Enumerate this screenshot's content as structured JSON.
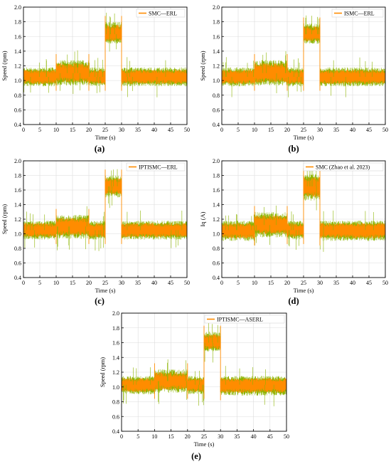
{
  "chart_data": [
    {
      "type": "line",
      "panel_label": "(a)",
      "legend": "SMC—ERL",
      "xlabel": "Time (s)",
      "ylabel": "Speed (rpm)",
      "xlim": [
        0,
        50
      ],
      "ylim": [
        0.4,
        2.0
      ],
      "xticks": [
        "0",
        "5",
        "10",
        "15",
        "20",
        "25",
        "30",
        "35",
        "40",
        "45",
        "50"
      ],
      "yticks": [
        "0.4",
        "0.6",
        "0.8",
        "1.0",
        "1.2",
        "1.4",
        "1.6",
        "1.8",
        "2.0"
      ],
      "grid": true,
      "legend_position": "top-right",
      "series_colors": [
        "#ff8c00",
        "#8cb400"
      ],
      "segments": [
        {
          "x": [
            0,
            10
          ],
          "center": 1.05,
          "low": 0.92,
          "high": 1.18
        },
        {
          "x": [
            10,
            20
          ],
          "center": 1.1,
          "low": 0.93,
          "high": 1.28
        },
        {
          "x": [
            20,
            25
          ],
          "center": 1.05,
          "low": 0.92,
          "high": 1.18
        },
        {
          "x": [
            25,
            30
          ],
          "center": 1.63,
          "low": 1.5,
          "high": 1.8
        },
        {
          "x": [
            30,
            50
          ],
          "center": 1.05,
          "low": 0.92,
          "high": 1.18
        }
      ]
    },
    {
      "type": "line",
      "panel_label": "(b)",
      "legend": "ISMC—ERL",
      "xlabel": "Time (s)",
      "ylabel": "Speed (rpm)",
      "xlim": [
        0,
        50
      ],
      "ylim": [
        0.4,
        2.0
      ],
      "xticks": [
        "0",
        "5",
        "10",
        "15",
        "20",
        "25",
        "30",
        "35",
        "40",
        "45",
        "50"
      ],
      "yticks": [
        "0.4",
        "0.6",
        "0.8",
        "1.0",
        "1.2",
        "1.4",
        "1.6",
        "1.8",
        "2.0"
      ],
      "grid": true,
      "legend_position": "top-right",
      "series_colors": [
        "#ff8c00",
        "#8cb400"
      ],
      "segments": [
        {
          "x": [
            0,
            10
          ],
          "center": 1.05,
          "low": 0.92,
          "high": 1.18
        },
        {
          "x": [
            10,
            20
          ],
          "center": 1.1,
          "low": 0.93,
          "high": 1.28
        },
        {
          "x": [
            20,
            25
          ],
          "center": 1.05,
          "low": 0.92,
          "high": 1.18
        },
        {
          "x": [
            25,
            30
          ],
          "center": 1.63,
          "low": 1.5,
          "high": 1.78
        },
        {
          "x": [
            30,
            50
          ],
          "center": 1.05,
          "low": 0.92,
          "high": 1.18
        }
      ]
    },
    {
      "type": "line",
      "panel_label": "(c)",
      "legend": "IPTISMC—ERL",
      "xlabel": "Time (s)",
      "ylabel": "Speed (rpm)",
      "xlim": [
        0,
        50
      ],
      "ylim": [
        0.4,
        2.0
      ],
      "xticks": [
        "0",
        "5",
        "10",
        "15",
        "20",
        "25",
        "30",
        "35",
        "40",
        "45",
        "50"
      ],
      "yticks": [
        "0.4",
        "0.6",
        "0.8",
        "1.0",
        "1.2",
        "1.4",
        "1.6",
        "1.8",
        "2.0"
      ],
      "grid": true,
      "legend_position": "top-right",
      "series_colors": [
        "#ff8c00",
        "#8cb400"
      ],
      "segments": [
        {
          "x": [
            0,
            10
          ],
          "center": 1.05,
          "low": 0.92,
          "high": 1.18
        },
        {
          "x": [
            10,
            20
          ],
          "center": 1.1,
          "low": 0.93,
          "high": 1.26
        },
        {
          "x": [
            20,
            25
          ],
          "center": 1.05,
          "low": 0.92,
          "high": 1.18
        },
        {
          "x": [
            25,
            30
          ],
          "center": 1.65,
          "low": 1.5,
          "high": 1.8
        },
        {
          "x": [
            30,
            50
          ],
          "center": 1.05,
          "low": 0.92,
          "high": 1.18
        }
      ]
    },
    {
      "type": "line",
      "panel_label": "(d)",
      "legend": "SMC (Zhao et al. 2023)",
      "xlabel": "Time (s)",
      "ylabel": "Iq (A)",
      "xlim": [
        0,
        50
      ],
      "ylim": [
        0.4,
        2.0
      ],
      "xticks": [
        "0",
        "5",
        "10",
        "15",
        "20",
        "25",
        "30",
        "35",
        "40",
        "45",
        "50"
      ],
      "yticks": [
        "0.4",
        "0.6",
        "0.8",
        "1.0",
        "1.2",
        "1.4",
        "1.6",
        "1.8",
        "2.0"
      ],
      "grid": true,
      "legend_position": "top-right",
      "series_colors": [
        "#ff8c00",
        "#8cb400"
      ],
      "segments": [
        {
          "x": [
            0,
            10
          ],
          "center": 1.05,
          "low": 0.9,
          "high": 1.18
        },
        {
          "x": [
            10,
            20
          ],
          "center": 1.12,
          "low": 0.95,
          "high": 1.3
        },
        {
          "x": [
            20,
            25
          ],
          "center": 1.05,
          "low": 0.92,
          "high": 1.18
        },
        {
          "x": [
            25,
            30
          ],
          "center": 1.65,
          "low": 1.45,
          "high": 1.82
        },
        {
          "x": [
            30,
            50
          ],
          "center": 1.05,
          "low": 0.9,
          "high": 1.18
        }
      ]
    },
    {
      "type": "line",
      "panel_label": "(e)",
      "legend": "IPTISMC—ASERL",
      "xlabel": "Time (s)",
      "ylabel": "Speed (rpm)",
      "xlim": [
        0,
        50
      ],
      "ylim": [
        0.4,
        2.0
      ],
      "xticks": [
        "0",
        "5",
        "10",
        "15",
        "20",
        "25",
        "30",
        "35",
        "40",
        "45",
        "50"
      ],
      "yticks": [
        "0.4",
        "0.6",
        "0.8",
        "1.0",
        "1.2",
        "1.4",
        "1.6",
        "1.8",
        "2.0"
      ],
      "grid": true,
      "legend_position": "top-right",
      "series_colors": [
        "#ff8c00",
        "#8cb400"
      ],
      "segments": [
        {
          "x": [
            0,
            10
          ],
          "center": 1.03,
          "low": 0.9,
          "high": 1.15
        },
        {
          "x": [
            10,
            20
          ],
          "center": 1.08,
          "low": 0.92,
          "high": 1.24
        },
        {
          "x": [
            20,
            25
          ],
          "center": 1.03,
          "low": 0.9,
          "high": 1.15
        },
        {
          "x": [
            25,
            30
          ],
          "center": 1.6,
          "low": 1.48,
          "high": 1.75
        },
        {
          "x": [
            30,
            50
          ],
          "center": 1.03,
          "low": 0.88,
          "high": 1.15
        }
      ]
    }
  ]
}
